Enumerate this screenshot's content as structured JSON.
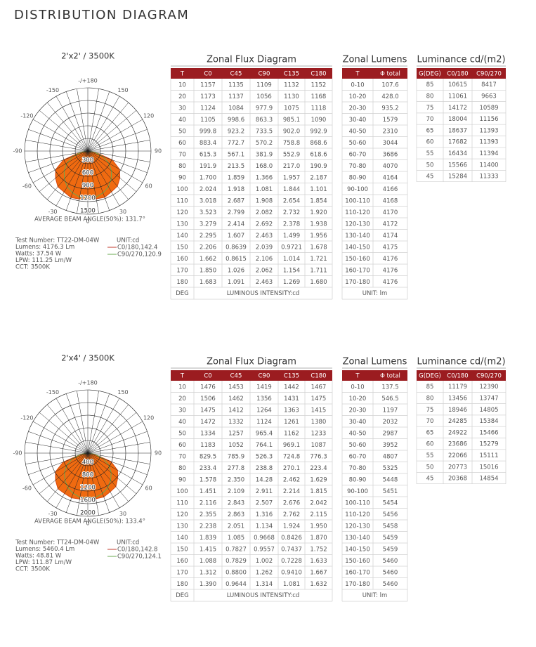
{
  "title": "DISTRIBUTION DIAGRAM",
  "sections": [
    {
      "diagram": {
        "title": "2'x2' / 3500K",
        "angle_labels": [
          "-/+180",
          "-150",
          "150",
          "-120",
          "120",
          "-90",
          "90",
          "-60",
          "60",
          "-30",
          "30",
          "0"
        ],
        "ring_labels": [
          "300",
          "600",
          "900",
          "1200",
          "1500"
        ],
        "beam_angle": "AVERAGE BEAM ANGLE(50%): 131.7°",
        "info": [
          "Test Number: TT22-DM-04W",
          "Lumens: 4176.3 Lm",
          "Watts: 37.54 W",
          "LPW: 111.25 Lm/W",
          "CCT: 3500K"
        ],
        "legend": [
          "UNIT:cd",
          "C0/180,142.4",
          "C90/270,120.9"
        ]
      },
      "flux": {
        "title": "Zonal Flux Diagram",
        "headers": [
          "T",
          "C0",
          "C45",
          "C90",
          "C135",
          "C180"
        ],
        "rows": [
          [
            "10",
            "1157",
            "1135",
            "1109",
            "1132",
            "1152"
          ],
          [
            "20",
            "1173",
            "1137",
            "1056",
            "1130",
            "1168"
          ],
          [
            "30",
            "1124",
            "1084",
            "977.9",
            "1075",
            "1118"
          ],
          [
            "40",
            "1105",
            "998.6",
            "863.3",
            "985.1",
            "1090"
          ],
          [
            "50",
            "999.8",
            "923.2",
            "733.5",
            "902.0",
            "992.9"
          ],
          [
            "60",
            "883.4",
            "772.7",
            "570.2",
            "758.8",
            "868.6"
          ],
          [
            "70",
            "615.3",
            "567.1",
            "381.9",
            "552.9",
            "618.6"
          ],
          [
            "80",
            "191.9",
            "213.5",
            "168.0",
            "217.0",
            "190.9"
          ],
          [
            "90",
            "1.700",
            "1.859",
            "1.366",
            "1.957",
            "2.187"
          ],
          [
            "100",
            "2.024",
            "1.918",
            "1.081",
            "1.844",
            "1.101"
          ],
          [
            "110",
            "3.018",
            "2.687",
            "1.908",
            "2.654",
            "1.854"
          ],
          [
            "120",
            "3.523",
            "2.799",
            "2.082",
            "2.732",
            "1.920"
          ],
          [
            "130",
            "3.279",
            "2.414",
            "2.692",
            "2.378",
            "1.938"
          ],
          [
            "140",
            "2.295",
            "1.607",
            "2.463",
            "1.499",
            "1.956"
          ],
          [
            "150",
            "2.206",
            "0.8639",
            "2.039",
            "0.9721",
            "1.678"
          ],
          [
            "160",
            "1.662",
            "0.8615",
            "2.106",
            "1.014",
            "1.721"
          ],
          [
            "170",
            "1.850",
            "1.026",
            "2.062",
            "1.154",
            "1.711"
          ],
          [
            "180",
            "1.683",
            "1.091",
            "2.463",
            "1.269",
            "1.680"
          ]
        ],
        "footer": [
          "DEG",
          "LUMINOUS INTENSITY:cd"
        ]
      },
      "lumens": {
        "title": "Zonal Lumens",
        "headers": [
          "T",
          "Φ total"
        ],
        "rows": [
          [
            "0-10",
            "107.6"
          ],
          [
            "10-20",
            "428.0"
          ],
          [
            "20-30",
            "935.2"
          ],
          [
            "30-40",
            "1579"
          ],
          [
            "40-50",
            "2310"
          ],
          [
            "50-60",
            "3044"
          ],
          [
            "60-70",
            "3686"
          ],
          [
            "70-80",
            "4070"
          ],
          [
            "80-90",
            "4164"
          ],
          [
            "90-100",
            "4166"
          ],
          [
            "100-110",
            "4168"
          ],
          [
            "110-120",
            "4170"
          ],
          [
            "120-130",
            "4172"
          ],
          [
            "130-140",
            "4174"
          ],
          [
            "140-150",
            "4175"
          ],
          [
            "150-160",
            "4176"
          ],
          [
            "160-170",
            "4176"
          ],
          [
            "170-180",
            "4176"
          ]
        ],
        "footer": "UNIT: lm"
      },
      "luminance": {
        "title": "Luminance cd/(m2)",
        "headers": [
          "G(DEG)",
          "C0/180",
          "C90/270"
        ],
        "rows": [
          [
            "85",
            "10615",
            "8417"
          ],
          [
            "80",
            "11061",
            "9663"
          ],
          [
            "75",
            "14172",
            "10589"
          ],
          [
            "70",
            "18004",
            "11156"
          ],
          [
            "65",
            "18637",
            "11393"
          ],
          [
            "60",
            "17682",
            "11393"
          ],
          [
            "55",
            "16434",
            "11394"
          ],
          [
            "50",
            "15566",
            "11400"
          ],
          [
            "45",
            "15284",
            "11333"
          ]
        ]
      }
    },
    {
      "diagram": {
        "title": "2'x4' / 3500K",
        "angle_labels": [
          "-/+180",
          "-150",
          "150",
          "-120",
          "120",
          "-90",
          "90",
          "-60",
          "60",
          "-30",
          "30",
          "0"
        ],
        "ring_labels": [
          "400",
          "800",
          "1200",
          "1600",
          "2000"
        ],
        "beam_angle": "AVERAGE BEAM ANGLE(50%): 133.4°",
        "info": [
          "Test Number: TT24-DM-04W",
          "Lumens: 5460.4 Lm",
          "Watts: 48.81 W",
          "LPW: 111.87 Lm/W",
          "CCT: 3500K"
        ],
        "legend": [
          "UNIT:cd",
          "C0/180,142.8",
          "C90/270,124.1"
        ]
      },
      "flux": {
        "title": "Zonal Flux Diagram",
        "headers": [
          "T",
          "C0",
          "C45",
          "C90",
          "C135",
          "C180"
        ],
        "rows": [
          [
            "10",
            "1476",
            "1453",
            "1419",
            "1442",
            "1467"
          ],
          [
            "20",
            "1506",
            "1462",
            "1356",
            "1431",
            "1475"
          ],
          [
            "30",
            "1475",
            "1412",
            "1264",
            "1363",
            "1415"
          ],
          [
            "40",
            "1472",
            "1332",
            "1124",
            "1261",
            "1380"
          ],
          [
            "50",
            "1334",
            "1257",
            "965.4",
            "1162",
            "1233"
          ],
          [
            "60",
            "1183",
            "1052",
            "764.1",
            "969.1",
            "1087"
          ],
          [
            "70",
            "829.5",
            "785.9",
            "526.3",
            "724.8",
            "776.3"
          ],
          [
            "80",
            "233.4",
            "277.8",
            "238.8",
            "270.1",
            "223.4"
          ],
          [
            "90",
            "1.578",
            "2.350",
            "14.28",
            "2.462",
            "1.629"
          ],
          [
            "100",
            "1.451",
            "2.109",
            "2.911",
            "2.214",
            "1.815"
          ],
          [
            "110",
            "2.116",
            "2.843",
            "2.507",
            "2.676",
            "2.042"
          ],
          [
            "120",
            "2.355",
            "2.863",
            "1.316",
            "2.762",
            "2.115"
          ],
          [
            "130",
            "2.238",
            "2.051",
            "1.134",
            "1.924",
            "1.950"
          ],
          [
            "140",
            "1.839",
            "1.085",
            "0.9668",
            "0.8426",
            "1.870"
          ],
          [
            "150",
            "1.415",
            "0.7827",
            "0.9557",
            "0.7437",
            "1.752"
          ],
          [
            "160",
            "1.088",
            "0.7829",
            "1.002",
            "0.7228",
            "1.633"
          ],
          [
            "170",
            "1.312",
            "0.8800",
            "1.262",
            "0.9410",
            "1.667"
          ],
          [
            "180",
            "1.390",
            "0.9644",
            "1.314",
            "1.081",
            "1.632"
          ]
        ],
        "footer": [
          "DEG",
          "LUMINOUS INTENSITY:cd"
        ]
      },
      "lumens": {
        "title": "Zonal Lumens",
        "headers": [
          "T",
          "Φ total"
        ],
        "rows": [
          [
            "0-10",
            "137.5"
          ],
          [
            "10-20",
            "546.5"
          ],
          [
            "20-30",
            "1197"
          ],
          [
            "30-40",
            "2032"
          ],
          [
            "40-50",
            "2987"
          ],
          [
            "50-60",
            "3952"
          ],
          [
            "60-70",
            "4807"
          ],
          [
            "70-80",
            "5325"
          ],
          [
            "80-90",
            "5448"
          ],
          [
            "90-100",
            "5451"
          ],
          [
            "100-110",
            "5454"
          ],
          [
            "110-120",
            "5456"
          ],
          [
            "120-130",
            "5458"
          ],
          [
            "130-140",
            "5459"
          ],
          [
            "140-150",
            "5459"
          ],
          [
            "150-160",
            "5460"
          ],
          [
            "160-170",
            "5460"
          ],
          [
            "170-180",
            "5460"
          ]
        ],
        "footer": "UNIT: lm"
      },
      "luminance": {
        "title": "Luminance cd/(m2)",
        "headers": [
          "G(DEG)",
          "C0/180",
          "C90/270"
        ],
        "rows": [
          [
            "85",
            "11179",
            "12390"
          ],
          [
            "80",
            "13456",
            "13747"
          ],
          [
            "75",
            "18946",
            "14805"
          ],
          [
            "70",
            "24285",
            "15384"
          ],
          [
            "65",
            "24922",
            "15466"
          ],
          [
            "60",
            "23686",
            "15279"
          ],
          [
            "55",
            "22066",
            "15111"
          ],
          [
            "50",
            "20773",
            "15016"
          ],
          [
            "45",
            "20368",
            "14854"
          ]
        ]
      }
    }
  ]
}
